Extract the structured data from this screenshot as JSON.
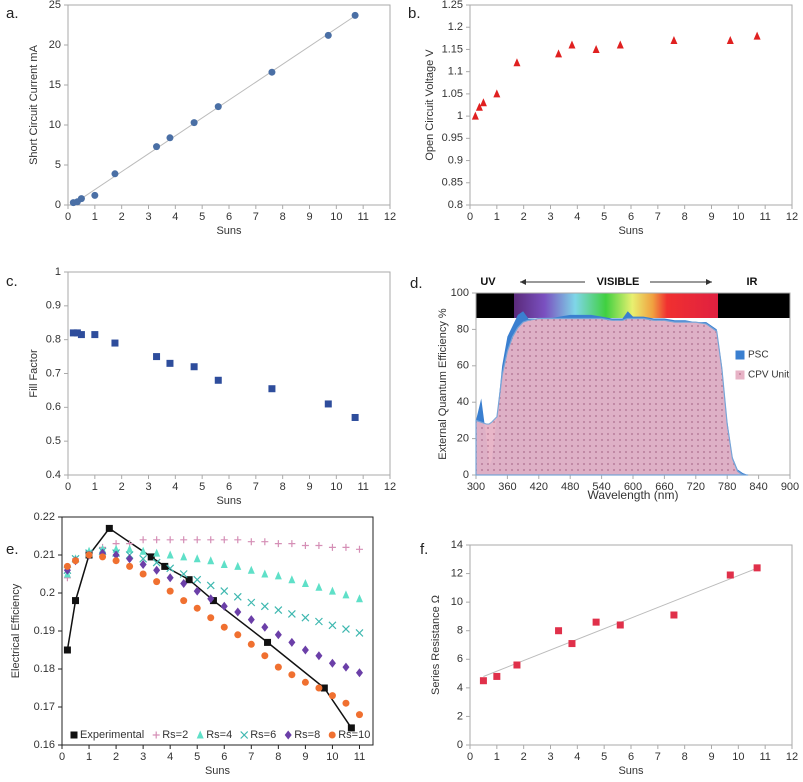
{
  "chart_data": [
    {
      "type": "scatter",
      "label": "a.",
      "xlabel": "Suns",
      "ylabel": "Short Circuit Current mA",
      "x": [
        0.2,
        0.35,
        0.5,
        1,
        1.75,
        3.3,
        3.8,
        4.7,
        5.6,
        7.6,
        9.7,
        10.7
      ],
      "values": [
        0.3,
        0.4,
        0.8,
        1.2,
        3.9,
        7.3,
        8.4,
        10.3,
        12.3,
        16.6,
        21.2,
        23.7
      ],
      "color": "#4a6fa5",
      "marker": "circle",
      "trendline": true,
      "axis_color": "#aaa",
      "xlim": [
        0,
        12
      ],
      "xticks": [
        0,
        1,
        2,
        3,
        4,
        5,
        6,
        7,
        8,
        9,
        10,
        11,
        12
      ],
      "ylim": [
        0,
        25
      ],
      "yticks": [
        0,
        5,
        10,
        15,
        20,
        25
      ]
    },
    {
      "type": "scatter",
      "label": "b.",
      "xlabel": "Suns",
      "ylabel": "Open Circuit Voltage V",
      "x": [
        0.2,
        0.35,
        0.5,
        1,
        1.75,
        3.3,
        3.8,
        4.7,
        5.6,
        7.6,
        9.7,
        10.7
      ],
      "values": [
        1.0,
        1.02,
        1.03,
        1.05,
        1.12,
        1.14,
        1.16,
        1.15,
        1.16,
        1.17,
        1.17,
        1.18
      ],
      "color": "#e02020",
      "marker": "triangle",
      "trendline": false,
      "axis_color": "#aaa",
      "xlim": [
        0,
        12
      ],
      "xticks": [
        0,
        1,
        2,
        3,
        4,
        5,
        6,
        7,
        8,
        9,
        10,
        11,
        12
      ],
      "ylim": [
        0.8,
        1.25
      ],
      "yticks": [
        0.8,
        0.85,
        0.9,
        0.95,
        1,
        1.05,
        1.1,
        1.15,
        1.2,
        1.25
      ]
    },
    {
      "type": "scatter",
      "label": "c.",
      "xlabel": "Suns",
      "ylabel": "Fill Factor",
      "x": [
        0.2,
        0.35,
        0.5,
        1,
        1.75,
        3.3,
        3.8,
        4.7,
        5.6,
        7.6,
        9.7,
        10.7
      ],
      "values": [
        0.82,
        0.82,
        0.815,
        0.815,
        0.79,
        0.75,
        0.73,
        0.72,
        0.68,
        0.655,
        0.61,
        0.57
      ],
      "color": "#2e4d9c",
      "marker": "square",
      "trendline": false,
      "axis_color": "#aaa",
      "xlim": [
        0,
        12
      ],
      "xticks": [
        0,
        1,
        2,
        3,
        4,
        5,
        6,
        7,
        8,
        9,
        10,
        11,
        12
      ],
      "ylim": [
        0.4,
        1
      ],
      "yticks": [
        0.4,
        0.5,
        0.6,
        0.7,
        0.8,
        0.9,
        1
      ]
    },
    {
      "type": "area",
      "label": "d.",
      "xlabel": "Wavelength (nm)",
      "ylabel": "External Quantum Efficiency  %",
      "band_labels": [
        "UV",
        "VISIBLE",
        "IR"
      ],
      "axis_color": "#aaa",
      "x": [
        300,
        310,
        320,
        325,
        330,
        340,
        350,
        360,
        370,
        380,
        390,
        400,
        420,
        440,
        460,
        480,
        500,
        520,
        540,
        560,
        580,
        590,
        600,
        620,
        640,
        660,
        680,
        700,
        720,
        740,
        760,
        770,
        780,
        790,
        800,
        810,
        820
      ],
      "series": [
        {
          "name": "PSC",
          "color": "#3a7fd0",
          "hatch": false,
          "values": [
            30,
            42,
            20,
            5,
            8,
            32,
            60,
            76,
            82,
            88,
            90,
            86,
            86,
            86,
            87,
            88,
            88,
            88,
            87,
            86,
            86,
            90,
            87,
            87,
            86,
            86,
            85,
            85,
            84,
            84,
            80,
            60,
            30,
            10,
            3,
            1,
            0
          ]
        },
        {
          "name": "CPV Unit",
          "color": "#e7b3c6",
          "hatch": true,
          "values": [
            30,
            29,
            28,
            28,
            29,
            32,
            55,
            68,
            76,
            81,
            84,
            85,
            86,
            86,
            86,
            86,
            86,
            86,
            86,
            85,
            85,
            86,
            86,
            86,
            85,
            85,
            84,
            84,
            84,
            83,
            79,
            58,
            28,
            9,
            2,
            0,
            0
          ]
        }
      ],
      "xlim": [
        300,
        900
      ],
      "xticks": [
        300,
        360,
        420,
        480,
        540,
        600,
        660,
        720,
        780,
        840,
        900
      ],
      "ylim": [
        0,
        100
      ],
      "yticks": [
        0,
        20,
        40,
        60,
        80,
        100
      ],
      "legend": "right"
    },
    {
      "type": "line",
      "label": "e.",
      "xlabel": "Suns",
      "ylabel": "Electrical Efficiency",
      "axis_color": "#222",
      "series": [
        {
          "name": "Experimental",
          "color": "#111111",
          "marker": "square",
          "line": true,
          "x": [
            0.2,
            0.5,
            1,
            1.75,
            3.3,
            3.8,
            4.7,
            5.6,
            7.6,
            9.7,
            10.7
          ],
          "values": [
            0.185,
            0.198,
            0.21,
            0.217,
            0.2095,
            0.207,
            0.2035,
            0.198,
            0.187,
            0.175,
            0.1645
          ]
        },
        {
          "name": "Rs=2",
          "color": "#d58fb6",
          "marker": "plus",
          "line": false,
          "x": [
            0.2,
            0.5,
            1,
            1.5,
            2,
            2.5,
            3,
            3.5,
            4,
            4.5,
            5,
            5.5,
            6,
            6.5,
            7,
            7.5,
            8,
            8.5,
            9,
            9.5,
            10,
            10.5,
            11
          ],
          "values": [
            0.204,
            0.209,
            0.211,
            0.212,
            0.213,
            0.213,
            0.214,
            0.214,
            0.214,
            0.214,
            0.214,
            0.214,
            0.214,
            0.214,
            0.2135,
            0.2135,
            0.213,
            0.213,
            0.2125,
            0.2125,
            0.212,
            0.212,
            0.2115
          ]
        },
        {
          "name": "Rs=4",
          "color": "#5fe0c8",
          "marker": "triangle",
          "line": false,
          "x": [
            0.2,
            0.5,
            1,
            1.5,
            2,
            2.5,
            3,
            3.5,
            4,
            4.5,
            5,
            5.5,
            6,
            6.5,
            7,
            7.5,
            8,
            8.5,
            9,
            9.5,
            10,
            10.5,
            11
          ],
          "values": [
            0.205,
            0.209,
            0.211,
            0.2115,
            0.2115,
            0.2115,
            0.211,
            0.2105,
            0.21,
            0.2095,
            0.209,
            0.2085,
            0.2075,
            0.207,
            0.206,
            0.205,
            0.2045,
            0.2035,
            0.2025,
            0.2015,
            0.2005,
            0.1995,
            0.1985
          ]
        },
        {
          "name": "Rs=6",
          "color": "#3fb8b0",
          "marker": "cross",
          "line": false,
          "x": [
            0.2,
            0.5,
            1,
            1.5,
            2,
            2.5,
            3,
            3.5,
            4,
            4.5,
            5,
            5.5,
            6,
            6.5,
            7,
            7.5,
            8,
            8.5,
            9,
            9.5,
            10,
            10.5,
            11
          ],
          "values": [
            0.206,
            0.209,
            0.2105,
            0.211,
            0.2105,
            0.21,
            0.209,
            0.208,
            0.2065,
            0.205,
            0.2035,
            0.202,
            0.2005,
            0.199,
            0.1975,
            0.1965,
            0.1955,
            0.1945,
            0.1935,
            0.1925,
            0.1915,
            0.1905,
            0.1895
          ]
        },
        {
          "name": "Rs=8",
          "color": "#6b3fa8",
          "marker": "diamond",
          "line": false,
          "x": [
            0.2,
            0.5,
            1,
            1.5,
            2,
            2.5,
            3,
            3.5,
            4,
            4.5,
            5,
            5.5,
            6,
            6.5,
            7,
            7.5,
            8,
            8.5,
            9,
            9.5,
            10,
            10.5,
            11
          ],
          "values": [
            0.206,
            0.2085,
            0.21,
            0.2105,
            0.21,
            0.209,
            0.2075,
            0.206,
            0.204,
            0.2025,
            0.2005,
            0.1985,
            0.1965,
            0.195,
            0.193,
            0.191,
            0.189,
            0.187,
            0.185,
            0.1835,
            0.1815,
            0.1805,
            0.179
          ]
        },
        {
          "name": "Rs=10",
          "color": "#f07030",
          "marker": "circle",
          "line": false,
          "x": [
            0.2,
            0.5,
            1,
            1.5,
            2,
            2.5,
            3,
            3.5,
            4,
            4.5,
            5,
            5.5,
            6,
            6.5,
            7,
            7.5,
            8,
            8.5,
            9,
            9.5,
            10,
            10.5,
            11
          ],
          "values": [
            0.207,
            0.2085,
            0.21,
            0.2095,
            0.2085,
            0.207,
            0.205,
            0.203,
            0.2005,
            0.198,
            0.196,
            0.1935,
            0.191,
            0.189,
            0.1865,
            0.1835,
            0.1805,
            0.1785,
            0.1765,
            0.175,
            0.173,
            0.171,
            0.168
          ]
        }
      ],
      "xlim": [
        0,
        11.5
      ],
      "xticks": [
        0,
        1,
        2,
        3,
        4,
        5,
        6,
        7,
        8,
        9,
        10,
        11
      ],
      "ylim": [
        0.16,
        0.22
      ],
      "yticks": [
        0.16,
        0.17,
        0.18,
        0.19,
        0.2,
        0.21,
        0.22
      ],
      "legend": "bottom"
    },
    {
      "type": "scatter",
      "label": "f.",
      "xlabel": "Suns",
      "ylabel": "Series Resistance Ω",
      "x": [
        0.5,
        1,
        1.75,
        3.3,
        3.8,
        4.7,
        5.6,
        7.6,
        9.7,
        10.7
      ],
      "values": [
        4.5,
        4.8,
        5.6,
        8,
        7.1,
        8.6,
        8.4,
        9.1,
        11.9,
        12.4
      ],
      "color": "#e0304a",
      "marker": "square",
      "trendline": true,
      "axis_color": "#aaa",
      "xlim": [
        0,
        12
      ],
      "xticks": [
        0,
        1,
        2,
        3,
        4,
        5,
        6,
        7,
        8,
        9,
        10,
        11,
        12
      ],
      "ylim": [
        0,
        14
      ],
      "yticks": [
        0,
        2,
        4,
        6,
        8,
        10,
        12,
        14
      ]
    }
  ]
}
